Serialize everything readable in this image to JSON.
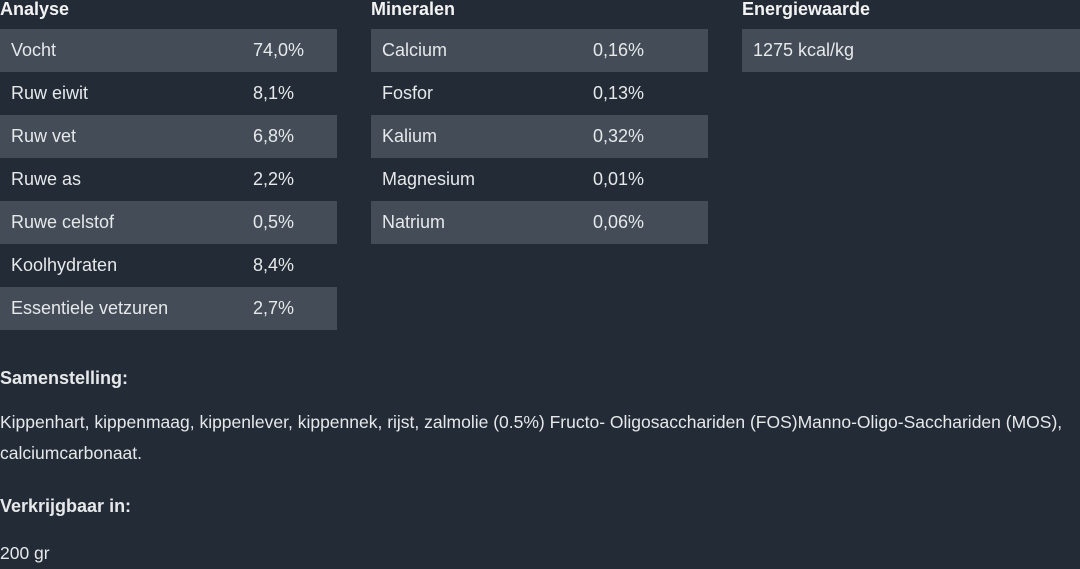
{
  "analyse": {
    "title": "Analyse",
    "rows": [
      [
        "Vocht",
        "74,0%"
      ],
      [
        "Ruw eiwit",
        "8,1%"
      ],
      [
        "Ruw vet",
        "6,8%"
      ],
      [
        "Ruwe as",
        "2,2%"
      ],
      [
        "Ruwe celstof",
        "0,5%"
      ],
      [
        "Koolhydraten",
        "8,4%"
      ],
      [
        "Essentiele vetzuren",
        "2,7%"
      ]
    ]
  },
  "mineralen": {
    "title": "Mineralen",
    "rows": [
      [
        "Calcium",
        "0,16%"
      ],
      [
        "Fosfor",
        "0,13%"
      ],
      [
        "Kalium",
        "0,32%"
      ],
      [
        "Magnesium",
        "0,01%"
      ],
      [
        "Natrium",
        "0,06%"
      ]
    ]
  },
  "energiewaarde": {
    "title": "Energiewaarde",
    "rows": [
      [
        "1275 kcal/kg"
      ]
    ]
  },
  "samenstelling": {
    "title": "Samenstelling:",
    "text": "Kippenhart, kippenmaag, kippenlever, kippennek, rijst, zalmolie (0.5%) Fructo- Oligosacchariden (FOS)Manno-Oligo-Sacchariden (MOS), calciumcarbonaat."
  },
  "verkrijgbaar": {
    "title": "Verkrijgbaar in:",
    "text": "200 gr"
  }
}
